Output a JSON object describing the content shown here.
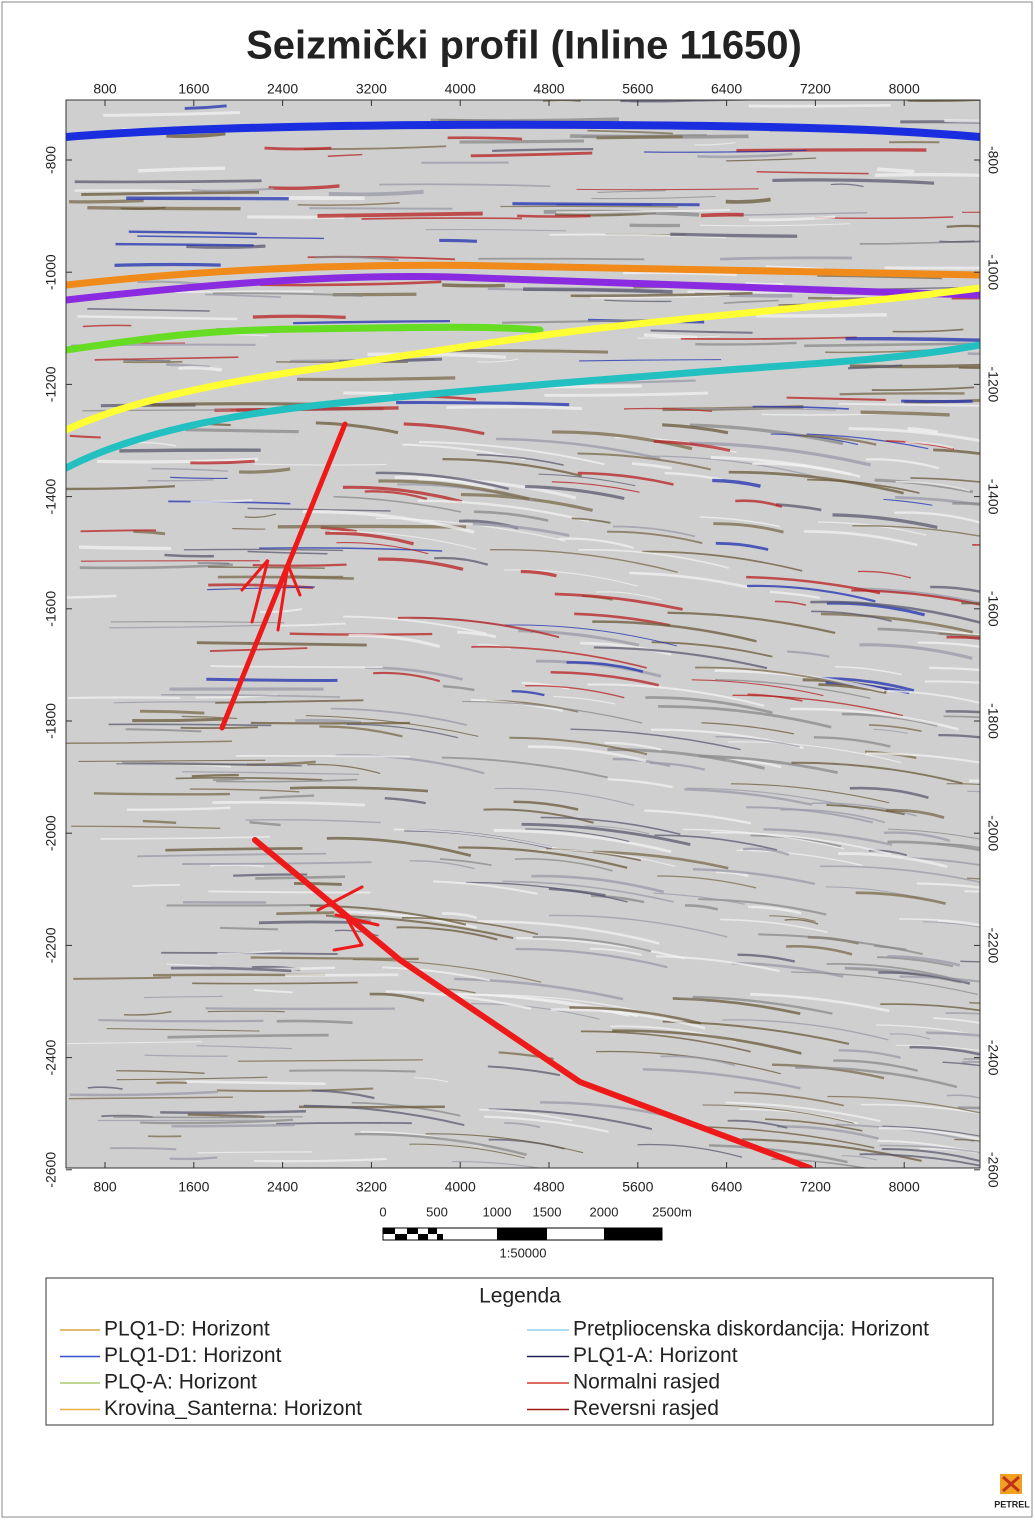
{
  "title": "Seizmički profil (Inline 11650)",
  "x_axis": {
    "ticks": [
      800,
      1600,
      2400,
      3200,
      4000,
      4800,
      5600,
      6400,
      7200,
      8000
    ]
  },
  "y_axis": {
    "ticks": [
      -800,
      -1000,
      -1200,
      -1400,
      -1600,
      -1800,
      -2000,
      -2200,
      -2400,
      -2600
    ]
  },
  "scale_bar": {
    "labels": [
      "0",
      "500",
      "1000",
      "1500",
      "2000",
      "2500m"
    ],
    "scale": "1:50000"
  },
  "legend": {
    "title": "Legenda",
    "items": [
      {
        "label": "PLQ1-D: Horizont",
        "color": "#d9a441"
      },
      {
        "label": "PLQ1-D1: Horizont",
        "color": "#3a4fd0"
      },
      {
        "label": "PLQ-A: Horizont",
        "color": "#a8c86a"
      },
      {
        "label": "Krovina_Santerna: Horizont",
        "color": "#e8b040"
      },
      {
        "label": "Pretpliocenska  diskordancija: Horizont",
        "color": "#8fd0ee"
      },
      {
        "label": "PLQ1-A: Horizont",
        "color": "#20205a"
      },
      {
        "label": "Normalni rasjed",
        "color": "#d23a2a"
      },
      {
        "label": "Reversni rasjed",
        "color": "#9a1818"
      }
    ]
  },
  "logo": "PETREL"
}
